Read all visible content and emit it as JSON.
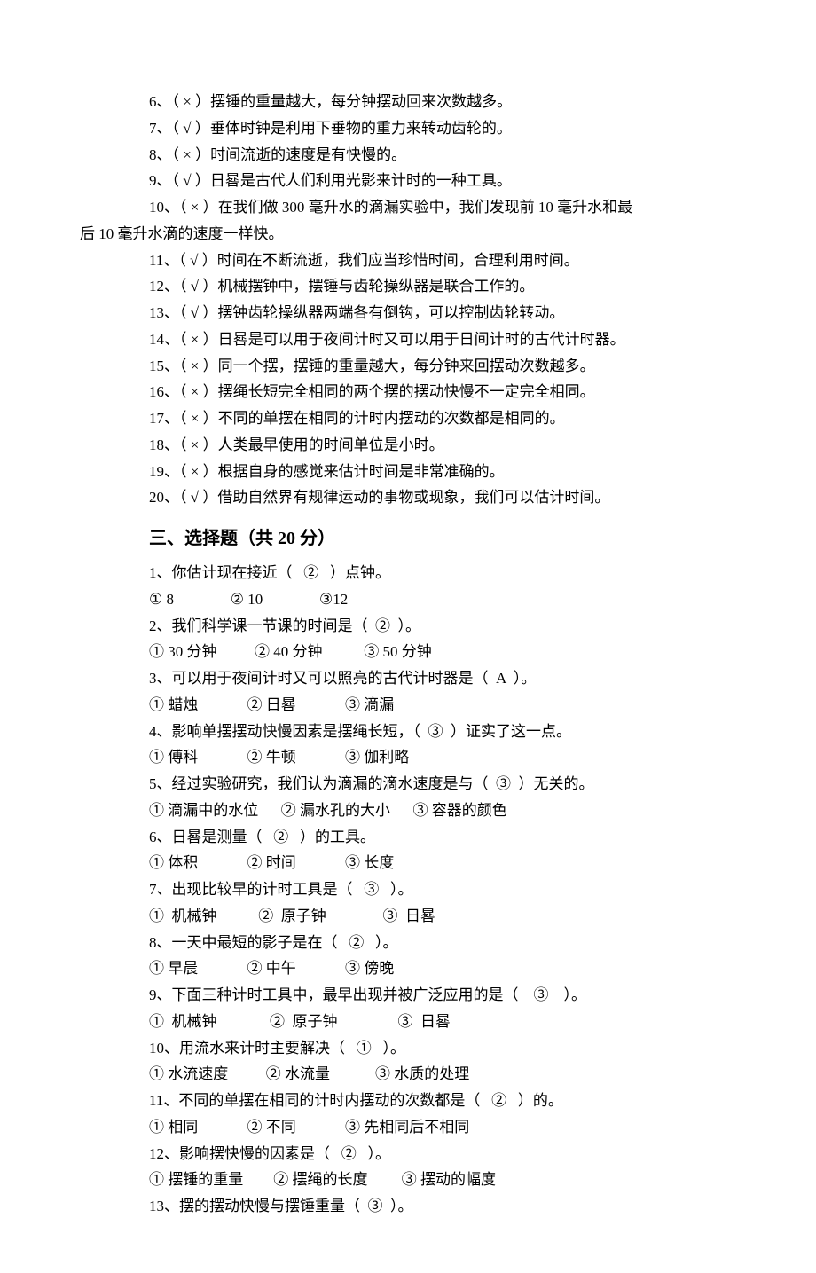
{
  "judgment": {
    "items": [
      {
        "num": "6",
        "mark": "×",
        "text": "摆锤的重量越大，每分钟摆动回来次数越多。",
        "indent": true
      },
      {
        "num": "7",
        "mark": "√",
        "text": "垂体时钟是利用下垂物的重力来转动齿轮的。",
        "indent": true
      },
      {
        "num": "8",
        "mark": "×",
        "text": "时间流逝的速度是有快慢的。",
        "indent": true
      },
      {
        "num": "9",
        "mark": "√",
        "text": "日晷是古代人们利用光影来计时的一种工具。",
        "indent": true
      },
      {
        "num": "10",
        "mark": "×",
        "text_line1": "在我们做 300 毫升水的滴漏实验中，我们发现前 10 毫升水和最",
        "text_line2": "后 10 毫升水滴的速度一样快。",
        "multiline": true
      },
      {
        "num": "11",
        "mark": "√",
        "text": "时间在不断流逝，我们应当珍惜时间，合理利用时间。",
        "indent": true
      },
      {
        "num": "12",
        "mark": "√",
        "text": "机械摆钟中，摆锤与齿轮操纵器是联合工作的。",
        "indent": true
      },
      {
        "num": "13",
        "mark": "√",
        "text": "摆钟齿轮操纵器两端各有倒钩，可以控制齿轮转动。",
        "indent": true
      },
      {
        "num": "14",
        "mark": "×",
        "text": "日晷是可以用于夜间计时又可以用于日间计时的古代计时器。",
        "indent": true
      },
      {
        "num": "15",
        "mark": "×",
        "text": "同一个摆，摆锤的重量越大，每分钟来回摆动次数越多。",
        "indent": true
      },
      {
        "num": "16",
        "mark": "×",
        "text": "摆绳长短完全相同的两个摆的摆动快慢不一定完全相同。",
        "indent": true
      },
      {
        "num": "17",
        "mark": "×",
        "text": "不同的单摆在相同的计时内摆动的次数都是相同的。",
        "indent": true
      },
      {
        "num": "18",
        "mark": "×",
        "text": "人类最早使用的时间单位是小时。",
        "indent": true
      },
      {
        "num": "19",
        "mark": "×",
        "text": "根据自身的感觉来估计时间是非常准确的。",
        "indent": true
      },
      {
        "num": "20",
        "mark": "√",
        "text": "借助自然界有规律运动的事物或现象，我们可以估计时间。",
        "indent": true
      }
    ]
  },
  "choice": {
    "title": "三、选择题（共 20 分）",
    "items": [
      {
        "q": "1、你估计现在接近（   ②   ）点钟。",
        "opts": "① 8               ② 10               ③12"
      },
      {
        "q": "2、我们科学课一节课的时间是（  ②  ）。",
        "opts": "① 30 分钟          ② 40 分钟           ③ 50 分钟"
      },
      {
        "q": "3、可以用于夜间计时又可以照亮的古代计时器是（  A  ）。",
        "opts": "① 蜡烛             ② 日晷             ③ 滴漏"
      },
      {
        "q": "4、影响单摆摆动快慢因素是摆绳长短，（  ③  ）证实了这一点。",
        "opts": "① 傅科             ② 牛顿             ③ 伽利略"
      },
      {
        "q": "5、经过实验研究，我们认为滴漏的滴水速度是与（  ③  ）无关的。",
        "opts": "① 滴漏中的水位      ② 漏水孔的大小      ③ 容器的颜色"
      },
      {
        "q": "6、日晷是测量（   ②   ）的工具。",
        "opts": "① 体积             ② 时间             ③ 长度"
      },
      {
        "q": "7、出现比较早的计时工具是（   ③   ）。",
        "opts": "①  机械钟           ②  原子钟               ③  日晷"
      },
      {
        "q": "8、一天中最短的影子是在（   ②   ）。",
        "opts": "① 早晨             ② 中午             ③ 傍晚"
      },
      {
        "q": "9、下面三种计时工具中，最早出现并被广泛应用的是（    ③    ）。",
        "opts": "①  机械钟              ②  原子钟                ③  日晷"
      },
      {
        "q": "10、用流水来计时主要解决（   ①   ）。",
        "opts": "① 水流速度          ② 水流量            ③ 水质的处理"
      },
      {
        "q": "11、不同的单摆在相同的计时内摆动的次数都是（   ②   ）的。",
        "opts": "① 相同             ② 不同             ③ 先相同后不相同"
      },
      {
        "q": "12、影响摆快慢的因素是（   ②   ）。",
        "opts": "① 摆锤的重量        ② 摆绳的长度         ③ 摆动的幅度"
      },
      {
        "q": "13、摆的摆动快慢与摆锤重量（  ③  ）。",
        "opts": ""
      }
    ]
  }
}
